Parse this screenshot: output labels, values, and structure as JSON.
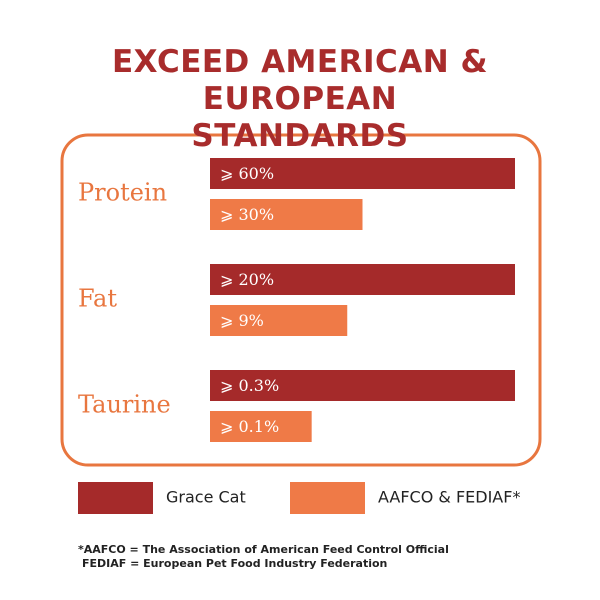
{
  "chart_data": {
    "type": "bar",
    "title": "EXCEED AMERICAN & EUROPEAN STANDARDS",
    "categories": [
      "Protein",
      "Fat",
      "Taurine"
    ],
    "series": [
      {
        "name": "Grace Cat",
        "color": "#a52a2a",
        "values": [
          60,
          20,
          0.3
        ],
        "value_labels": [
          "⩾ 60%",
          "⩾ 20%",
          "⩾ 0.3%"
        ]
      },
      {
        "name": "AAFCO & FEDIAF*",
        "color": "#ef7a47",
        "values": [
          30,
          9,
          0.1
        ],
        "value_labels": [
          "⩾ 30%",
          "⩾ 9%",
          "⩾ 0.1%"
        ]
      }
    ],
    "footnotes": [
      "*AAFCO = The Association of American Feed Control Official",
      "FEDIAF = European Pet Food Industry Federation"
    ]
  }
}
